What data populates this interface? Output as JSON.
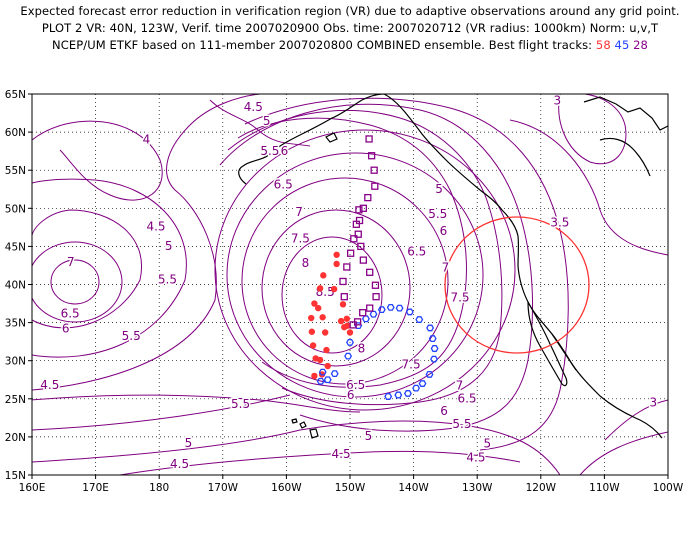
{
  "header": {
    "line1": "Expected forecast error reduction in verification region (VR) due to adaptive observations around any grid point.",
    "line2": "PLOT 2 VR: 40N, 123W, Verif. time 2007020900 Obs. time: 2007020712 (VR radius: 1000km) Norm: u,v,T",
    "line3_prefix": "NCEP/UM ETKF based on 111-member 2007020800 COMBINED ensemble.  Best flight tracks:",
    "track_a": "58",
    "track_b": "45",
    "track_c": "28"
  },
  "map": {
    "lon_ticks": [
      {
        "lon": 160,
        "label": "160E"
      },
      {
        "lon": 170,
        "label": "170E"
      },
      {
        "lon": 180,
        "label": "180"
      },
      {
        "lon": 190,
        "label": "170W"
      },
      {
        "lon": 200,
        "label": "160W"
      },
      {
        "lon": 210,
        "label": "150W"
      },
      {
        "lon": 220,
        "label": "140W"
      },
      {
        "lon": 230,
        "label": "130W"
      },
      {
        "lon": 240,
        "label": "120W"
      },
      {
        "lon": 250,
        "label": "110W"
      },
      {
        "lon": 260,
        "label": "100W"
      }
    ],
    "lat_ticks": [
      {
        "lat": 15,
        "label": "15N"
      },
      {
        "lat": 20,
        "label": "20N"
      },
      {
        "lat": 25,
        "label": "25N"
      },
      {
        "lat": 30,
        "label": "30N"
      },
      {
        "lat": 35,
        "label": "35N"
      },
      {
        "lat": 40,
        "label": "40N"
      },
      {
        "lat": 45,
        "label": "45N"
      },
      {
        "lat": 50,
        "label": "50N"
      },
      {
        "lat": 55,
        "label": "55N"
      },
      {
        "lat": 60,
        "label": "60N"
      },
      {
        "lat": 65,
        "label": "65N"
      }
    ],
    "contour_labels": [
      {
        "text": "4.5",
        "lon": 194.8,
        "lat": 62.8
      },
      {
        "text": "4",
        "lon": 178.0,
        "lat": 58.5
      },
      {
        "text": "5",
        "lon": 196.9,
        "lat": 60.9
      },
      {
        "text": "5.5",
        "lon": 197.4,
        "lat": 57.0
      },
      {
        "text": "6",
        "lon": 199.7,
        "lat": 57.0
      },
      {
        "text": "6.5",
        "lon": 199.5,
        "lat": 52.6
      },
      {
        "text": "7",
        "lon": 202.0,
        "lat": 49.0
      },
      {
        "text": "7.5",
        "lon": 202.2,
        "lat": 45.5
      },
      {
        "text": "8",
        "lon": 203.0,
        "lat": 42.3
      },
      {
        "text": "8.5",
        "lon": 206.1,
        "lat": 38.5
      },
      {
        "text": "4.5",
        "lon": 179.5,
        "lat": 47.1
      },
      {
        "text": "5",
        "lon": 181.5,
        "lat": 44.5
      },
      {
        "text": "7",
        "lon": 166.1,
        "lat": 42.4
      },
      {
        "text": "5.5",
        "lon": 181.3,
        "lat": 40.1
      },
      {
        "text": "6.5",
        "lon": 166.0,
        "lat": 35.7
      },
      {
        "text": "6",
        "lon": 165.3,
        "lat": 33.7
      },
      {
        "text": "5.5",
        "lon": 175.6,
        "lat": 32.7
      },
      {
        "text": "4.5",
        "lon": 162.8,
        "lat": 26.3
      },
      {
        "text": "5.5",
        "lon": 192.8,
        "lat": 23.8
      },
      {
        "text": "5",
        "lon": 184.6,
        "lat": 18.7
      },
      {
        "text": "4.5",
        "lon": 183.2,
        "lat": 15.9
      },
      {
        "text": "3",
        "lon": 242.6,
        "lat": 63.6
      },
      {
        "text": "3.5",
        "lon": 243.0,
        "lat": 47.6
      },
      {
        "text": "5",
        "lon": 224.0,
        "lat": 52.0
      },
      {
        "text": "5.5",
        "lon": 223.8,
        "lat": 48.7
      },
      {
        "text": "6",
        "lon": 224.7,
        "lat": 46.5
      },
      {
        "text": "6.5",
        "lon": 220.5,
        "lat": 43.8
      },
      {
        "text": "7",
        "lon": 225.0,
        "lat": 41.7
      },
      {
        "text": "7.5",
        "lon": 227.3,
        "lat": 37.8
      },
      {
        "text": "7.5",
        "lon": 219.6,
        "lat": 29.0
      },
      {
        "text": "7",
        "lon": 227.2,
        "lat": 26.2
      },
      {
        "text": "6.5",
        "lon": 228.4,
        "lat": 24.5
      },
      {
        "text": "6",
        "lon": 224.8,
        "lat": 22.9
      },
      {
        "text": "5.5",
        "lon": 227.6,
        "lat": 21.2
      },
      {
        "text": "5",
        "lon": 231.6,
        "lat": 18.6
      },
      {
        "text": "4.5",
        "lon": 229.8,
        "lat": 16.8
      },
      {
        "text": "5",
        "lon": 212.9,
        "lat": 19.6
      },
      {
        "text": "4.5",
        "lon": 208.6,
        "lat": 17.2
      },
      {
        "text": "6.5",
        "lon": 210.9,
        "lat": 26.3
      },
      {
        "text": "6",
        "lon": 210.1,
        "lat": 25.0
      },
      {
        "text": "8",
        "lon": 211.8,
        "lat": 31.1
      },
      {
        "text": "3",
        "lon": 257.7,
        "lat": 24.0
      }
    ],
    "track_58_points": [
      {
        "lon": 205.0,
        "lat": 36.9
      },
      {
        "lon": 205.7,
        "lat": 35.7
      },
      {
        "lon": 206.1,
        "lat": 33.7
      },
      {
        "lon": 206.3,
        "lat": 31.4
      },
      {
        "lon": 205.3,
        "lat": 30.1
      },
      {
        "lon": 206.5,
        "lat": 29.3
      },
      {
        "lon": 205.6,
        "lat": 28.2
      },
      {
        "lon": 204.4,
        "lat": 28.0
      },
      {
        "lon": 204.6,
        "lat": 30.3
      },
      {
        "lon": 204.2,
        "lat": 32.0
      },
      {
        "lon": 204.0,
        "lat": 33.8
      },
      {
        "lon": 203.9,
        "lat": 35.6
      },
      {
        "lon": 204.4,
        "lat": 37.5
      },
      {
        "lon": 205.3,
        "lat": 39.5
      },
      {
        "lon": 205.8,
        "lat": 41.2
      },
      {
        "lon": 207.9,
        "lat": 43.9
      },
      {
        "lon": 207.9,
        "lat": 42.7
      },
      {
        "lon": 207.5,
        "lat": 39.4
      },
      {
        "lon": 208.9,
        "lat": 37.4
      },
      {
        "lon": 208.6,
        "lat": 35.2
      },
      {
        "lon": 209.1,
        "lat": 34.4
      },
      {
        "lon": 209.5,
        "lat": 35.5
      },
      {
        "lon": 209.6,
        "lat": 34.6
      },
      {
        "lon": 210.0,
        "lat": 33.7
      }
    ],
    "track_45_points": [
      {
        "lon": 205.7,
        "lat": 28.5
      },
      {
        "lon": 205.4,
        "lat": 27.3
      },
      {
        "lon": 206.5,
        "lat": 27.5
      },
      {
        "lon": 207.6,
        "lat": 28.3
      },
      {
        "lon": 209.7,
        "lat": 30.6
      },
      {
        "lon": 210.0,
        "lat": 32.4
      },
      {
        "lon": 211.3,
        "lat": 34.6
      },
      {
        "lon": 212.5,
        "lat": 35.5
      },
      {
        "lon": 213.7,
        "lat": 36.1
      },
      {
        "lon": 215.0,
        "lat": 36.7
      },
      {
        "lon": 216.4,
        "lat": 37.0
      },
      {
        "lon": 217.8,
        "lat": 36.9
      },
      {
        "lon": 219.4,
        "lat": 36.4
      },
      {
        "lon": 220.9,
        "lat": 35.4
      },
      {
        "lon": 222.6,
        "lat": 34.3
      },
      {
        "lon": 223.0,
        "lat": 32.9
      },
      {
        "lon": 223.3,
        "lat": 31.6
      },
      {
        "lon": 223.2,
        "lat": 30.2
      },
      {
        "lon": 222.5,
        "lat": 28.2
      },
      {
        "lon": 221.4,
        "lat": 27.0
      },
      {
        "lon": 220.4,
        "lat": 26.4
      },
      {
        "lon": 219.1,
        "lat": 25.7
      },
      {
        "lon": 217.6,
        "lat": 25.5
      },
      {
        "lon": 216.0,
        "lat": 25.3
      }
    ],
    "track_28_points": [
      {
        "lon": 213.0,
        "lat": 59.1
      },
      {
        "lon": 213.4,
        "lat": 56.9
      },
      {
        "lon": 213.8,
        "lat": 55.0
      },
      {
        "lon": 213.9,
        "lat": 52.9
      },
      {
        "lon": 212.8,
        "lat": 51.4
      },
      {
        "lon": 212.1,
        "lat": 50.0
      },
      {
        "lon": 211.5,
        "lat": 48.4
      },
      {
        "lon": 211.3,
        "lat": 46.6
      },
      {
        "lon": 211.7,
        "lat": 45.0
      },
      {
        "lon": 212.1,
        "lat": 43.2
      },
      {
        "lon": 213.1,
        "lat": 41.6
      },
      {
        "lon": 214.0,
        "lat": 39.9
      },
      {
        "lon": 214.1,
        "lat": 38.4
      },
      {
        "lon": 213.1,
        "lat": 36.9
      },
      {
        "lon": 212.0,
        "lat": 36.3
      },
      {
        "lon": 211.2,
        "lat": 35.1
      },
      {
        "lon": 210.5,
        "lat": 34.7
      },
      {
        "lon": 209.1,
        "lat": 38.4
      },
      {
        "lon": 208.9,
        "lat": 40.4
      },
      {
        "lon": 209.5,
        "lat": 42.3
      },
      {
        "lon": 210.1,
        "lat": 44.1
      },
      {
        "lon": 210.6,
        "lat": 46.0
      },
      {
        "lon": 211.0,
        "lat": 47.9
      },
      {
        "lon": 211.4,
        "lat": 49.8
      }
    ],
    "verification_region": {
      "lat": 40,
      "lon": 237,
      "radius_km": 1000
    },
    "colors": {
      "contour": "#800080",
      "track_58": "#ff3333",
      "track_45": "#2244ff",
      "track_28": "#880088",
      "vr_circle": "#ff3333"
    }
  }
}
